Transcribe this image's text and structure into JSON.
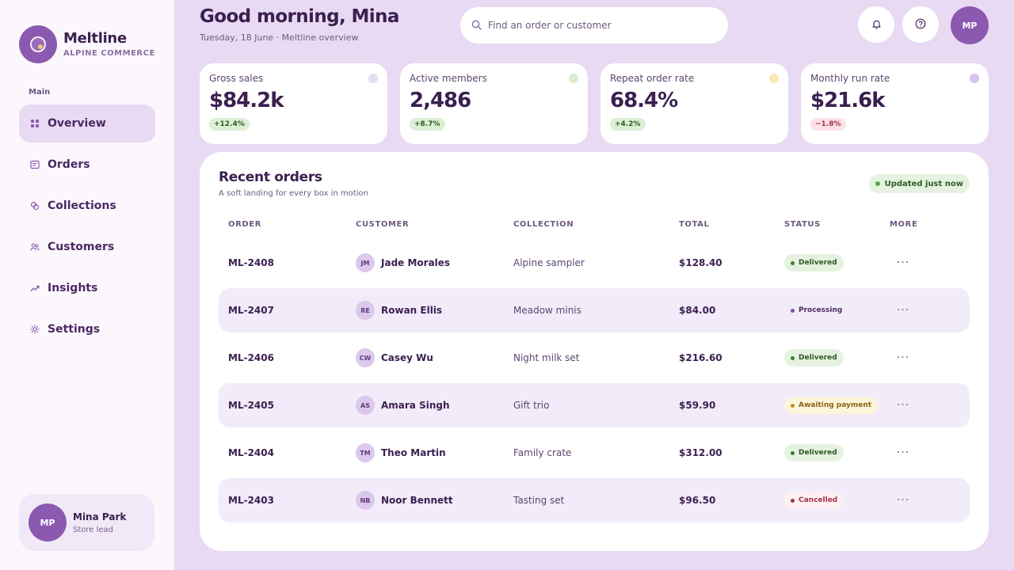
{
  "brand": {
    "name": "Meltline",
    "subtitle": "ALPINE COMMERCE"
  },
  "sidebar": {
    "section_label": "Main",
    "items": [
      {
        "label": "Overview",
        "icon": "grid-icon",
        "active": true
      },
      {
        "label": "Orders",
        "icon": "receipt-icon",
        "active": false
      },
      {
        "label": "Collections",
        "icon": "collections-icon",
        "active": false
      },
      {
        "label": "Customers",
        "icon": "users-icon",
        "active": false
      },
      {
        "label": "Insights",
        "icon": "trend-icon",
        "active": false
      },
      {
        "label": "Settings",
        "icon": "gear-icon",
        "active": false
      }
    ],
    "user": {
      "initials": "MP",
      "name": "Mina Park",
      "role": "Store lead"
    }
  },
  "header": {
    "greeting": "Good morning, Mina",
    "subline": "Tuesday, 18 June · Meltline overview",
    "search_placeholder": "Find an order or customer",
    "avatar_initials": "MP"
  },
  "kpis": [
    {
      "label": "Gross sales",
      "value": "$84.2k",
      "delta": "+12.4%",
      "trend": "up",
      "dot_color": "#e6ddf2"
    },
    {
      "label": "Active members",
      "value": "2,486",
      "delta": "+8.7%",
      "trend": "up",
      "dot_color": "#d8eccf"
    },
    {
      "label": "Repeat order rate",
      "value": "68.4%",
      "delta": "+4.2%",
      "trend": "up",
      "dot_color": "#fbe9b5"
    },
    {
      "label": "Monthly run rate",
      "value": "$21.6k",
      "delta": "−1.8%",
      "trend": "down",
      "dot_color": "#d6c3ea"
    }
  ],
  "orders": {
    "title": "Recent orders",
    "subtitle": "A soft landing for every box in motion",
    "updated_label": "Updated just now",
    "columns": [
      "ORDER",
      "CUSTOMER",
      "COLLECTION",
      "TOTAL",
      "STATUS",
      "MORE"
    ],
    "rows": [
      {
        "order": "ML-2408",
        "initials": "JM",
        "customer": "Jade Morales",
        "collection": "Alpine sampler",
        "total": "$128.40",
        "status": "Delivered",
        "status_kind": "delivered"
      },
      {
        "order": "ML-2407",
        "initials": "RE",
        "customer": "Rowan Ellis",
        "collection": "Meadow minis",
        "total": "$84.00",
        "status": "Processing",
        "status_kind": "processing"
      },
      {
        "order": "ML-2406",
        "initials": "CW",
        "customer": "Casey Wu",
        "collection": "Night milk set",
        "total": "$216.60",
        "status": "Delivered",
        "status_kind": "delivered"
      },
      {
        "order": "ML-2405",
        "initials": "AS",
        "customer": "Amara Singh",
        "collection": "Gift trio",
        "total": "$59.90",
        "status": "Awaiting payment",
        "status_kind": "awaiting"
      },
      {
        "order": "ML-2404",
        "initials": "TM",
        "customer": "Theo Martin",
        "collection": "Family crate",
        "total": "$312.00",
        "status": "Delivered",
        "status_kind": "delivered"
      },
      {
        "order": "ML-2403",
        "initials": "NB",
        "customer": "Noor Bennett",
        "collection": "Tasting set",
        "total": "$96.50",
        "status": "Cancelled",
        "status_kind": "cancelled"
      }
    ]
  },
  "colors": {
    "accent": "#8b59b0",
    "background": "#e8daf3",
    "ink": "#3a1f4f"
  }
}
